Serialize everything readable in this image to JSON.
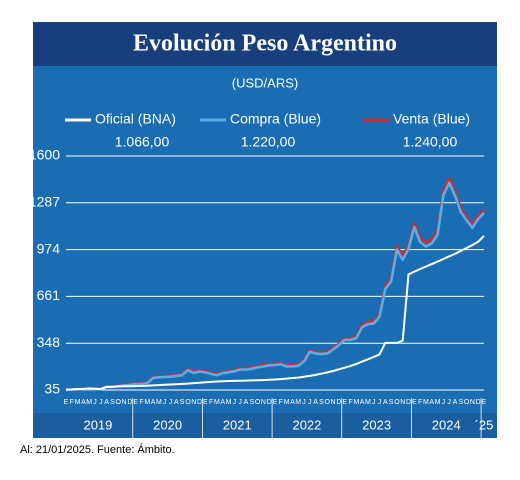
{
  "chart_data": {
    "type": "line",
    "title": "Evolución Peso Argentino",
    "subtitle": "(USD/ARS)",
    "footnote": "Al: 21/01/2025. Fuente: Ámbito.",
    "categories": [
      "E",
      "F",
      "M",
      "A",
      "M",
      "J",
      "J",
      "A",
      "S",
      "O",
      "N",
      "D",
      "E",
      "F",
      "M",
      "A",
      "M",
      "J",
      "J",
      "A",
      "S",
      "O",
      "N",
      "D",
      "E",
      "F",
      "M",
      "A",
      "M",
      "J",
      "J",
      "A",
      "S",
      "O",
      "N",
      "D",
      "E",
      "F",
      "M",
      "A",
      "M",
      "J",
      "J",
      "A",
      "S",
      "O",
      "N",
      "D",
      "E",
      "F",
      "M",
      "A",
      "M",
      "J",
      "J",
      "A",
      "S",
      "O",
      "N",
      "D",
      "E",
      "F",
      "M",
      "A",
      "M",
      "J",
      "J",
      "A",
      "S",
      "O",
      "N",
      "D",
      "E"
    ],
    "years": [
      "2019",
      "2020",
      "2021",
      "2022",
      "2023",
      "2024",
      "´25"
    ],
    "series": [
      {
        "name": "Oficial (BNA)",
        "color": "#ffffff",
        "values": [
          38,
          39,
          42,
          42,
          45,
          43,
          42,
          55,
          57,
          59,
          60,
          60,
          61,
          62,
          64,
          66,
          68,
          70,
          72,
          74,
          76,
          78,
          81,
          84,
          87,
          89,
          92,
          93,
          95,
          96,
          97,
          98,
          99,
          100,
          101,
          103,
          105,
          108,
          111,
          115,
          118,
          124,
          129,
          136,
          144,
          153,
          162,
          173,
          184,
          196,
          209,
          225,
          240,
          256,
          273,
          350,
          350,
          350,
          365,
          808,
          826,
          844,
          860,
          877,
          894,
          911,
          929,
          946,
          965,
          985,
          1005,
          1026,
          1066
        ],
        "value_labels": [
          null,
          null,
          null,
          null,
          null,
          null,
          null,
          null,
          null,
          null,
          null,
          null,
          null,
          null,
          null,
          null,
          null,
          null,
          null,
          null,
          null,
          null,
          null,
          null,
          null,
          null,
          null,
          null,
          null,
          null,
          null,
          null,
          null,
          null,
          null,
          null,
          null,
          null,
          null,
          null,
          null,
          null,
          null,
          null,
          null,
          null,
          null,
          null,
          null,
          null,
          null,
          null,
          null,
          null,
          null,
          null,
          null,
          null,
          null,
          null,
          null,
          null,
          null,
          null,
          null,
          null,
          null,
          null,
          null,
          null,
          null,
          null,
          "1.066,00"
        ]
      },
      {
        "name": "Compra (Blue)",
        "color": "#5aaee8",
        "values": [
          36,
          37,
          40,
          42,
          43,
          41,
          40,
          57,
          55,
          60,
          66,
          69,
          74,
          76,
          81,
          115,
          120,
          122,
          124,
          129,
          134,
          168,
          148,
          159,
          153,
          143,
          133,
          148,
          153,
          161,
          172,
          172,
          177,
          187,
          192,
          200,
          202,
          207,
          192,
          192,
          197,
          226,
          290,
          280,
          275,
          280,
          305,
          336,
          370,
          370,
          382,
          455,
          475,
          480,
          525,
          710,
          760,
          975,
          905,
          980,
          1125,
          1025,
          995,
          1015,
          1075,
          1340,
          1420,
          1335,
          1225,
          1170,
          1120,
          1180,
          1220
        ],
        "value_labels": [
          null,
          null,
          null,
          null,
          null,
          null,
          null,
          null,
          null,
          null,
          null,
          null,
          null,
          null,
          null,
          null,
          null,
          null,
          null,
          null,
          null,
          null,
          null,
          null,
          null,
          null,
          null,
          null,
          null,
          null,
          null,
          null,
          null,
          null,
          null,
          null,
          null,
          null,
          null,
          null,
          null,
          null,
          null,
          null,
          null,
          null,
          null,
          null,
          null,
          null,
          null,
          null,
          null,
          null,
          null,
          null,
          null,
          null,
          null,
          null,
          null,
          null,
          null,
          null,
          null,
          null,
          null,
          null,
          null,
          null,
          null,
          null,
          "1.220,00"
        ]
      },
      {
        "name": "Venta (Blue)",
        "color": "#d42a2a",
        "values": [
          38,
          39,
          42,
          44,
          45,
          43,
          42,
          60,
          58,
          63,
          70,
          73,
          78,
          80,
          85,
          120,
          125,
          128,
          130,
          135,
          140,
          175,
          155,
          166,
          160,
          150,
          140,
          155,
          160,
          168,
          180,
          180,
          185,
          195,
          200,
          208,
          210,
          215,
          200,
          200,
          205,
          235,
          300,
          290,
          285,
          290,
          315,
          346,
          380,
          380,
          392,
          470,
          490,
          494,
          540,
          730,
          780,
          1000,
          930,
          1000,
          1150,
          1050,
          1020,
          1040,
          1100,
          1370,
          1450,
          1360,
          1250,
          1190,
          1140,
          1200,
          1240
        ],
        "value_labels": [
          null,
          null,
          null,
          null,
          null,
          null,
          null,
          null,
          null,
          null,
          null,
          null,
          null,
          null,
          null,
          null,
          null,
          null,
          null,
          null,
          null,
          null,
          null,
          null,
          null,
          null,
          null,
          null,
          null,
          null,
          null,
          null,
          null,
          null,
          null,
          null,
          null,
          null,
          null,
          null,
          null,
          null,
          null,
          null,
          null,
          null,
          null,
          null,
          null,
          null,
          null,
          null,
          null,
          null,
          null,
          null,
          null,
          null,
          null,
          null,
          null,
          null,
          null,
          null,
          null,
          null,
          null,
          null,
          null,
          null,
          null,
          null,
          "1.240,00"
        ]
      }
    ],
    "ylim": [
      35,
      1600
    ],
    "yticks": [
      35,
      348,
      661,
      974,
      1287,
      1600
    ],
    "grid": true
  }
}
